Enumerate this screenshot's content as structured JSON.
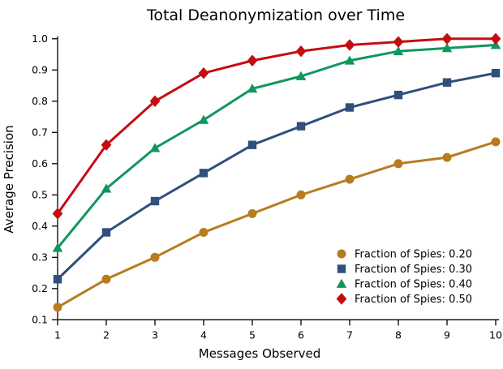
{
  "page": {
    "background_color": "#ffffff",
    "text_color": "#000000"
  },
  "chart_data": {
    "type": "line",
    "title": "Total Deanonymization over Time",
    "xlabel": "Messages Observed",
    "ylabel": "Average Precision",
    "grid": false,
    "legend_position": "lower right",
    "legend_frame": false,
    "xlim": [
      1,
      10
    ],
    "ylim": [
      0.1,
      1.0
    ],
    "x_ticks": [
      1,
      2,
      3,
      4,
      5,
      6,
      7,
      8,
      9,
      10
    ],
    "y_ticks": [
      0.1,
      0.2,
      0.3,
      0.4,
      0.5,
      0.6,
      0.7,
      0.8,
      0.9,
      1.0
    ],
    "x": [
      1,
      2,
      3,
      4,
      5,
      6,
      7,
      8,
      9,
      10
    ],
    "series": [
      {
        "name": "Fraction of Spies: 0.20",
        "marker": "circle",
        "color": "#B87C20",
        "values": [
          0.14,
          0.23,
          0.3,
          0.38,
          0.44,
          0.5,
          0.55,
          0.6,
          0.62,
          0.67
        ]
      },
      {
        "name": "Fraction of Spies: 0.30",
        "marker": "square",
        "color": "#2F4F7D",
        "values": [
          0.23,
          0.38,
          0.48,
          0.57,
          0.66,
          0.72,
          0.78,
          0.82,
          0.86,
          0.89
        ]
      },
      {
        "name": "Fraction of Spies: 0.40",
        "marker": "triangle",
        "color": "#11965D",
        "values": [
          0.33,
          0.52,
          0.65,
          0.74,
          0.84,
          0.88,
          0.93,
          0.96,
          0.97,
          0.98
        ]
      },
      {
        "name": "Fraction of Spies: 0.50",
        "marker": "diamond",
        "color": "#C40D10",
        "values": [
          0.44,
          0.66,
          0.8,
          0.89,
          0.93,
          0.96,
          0.98,
          0.99,
          1.0,
          1.0
        ]
      }
    ]
  }
}
